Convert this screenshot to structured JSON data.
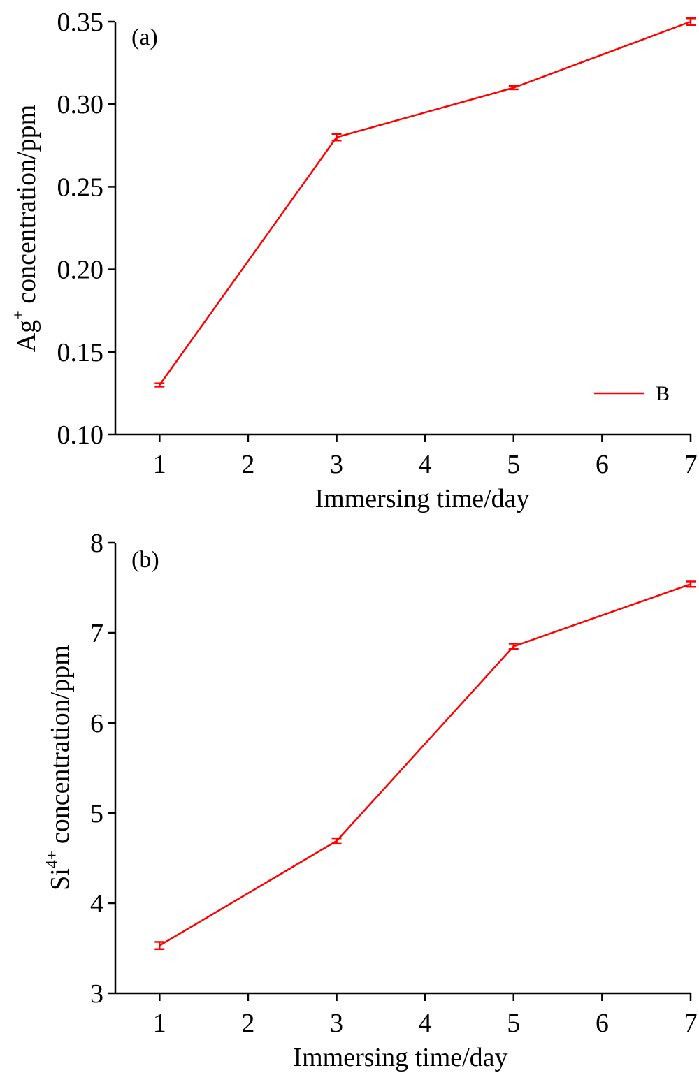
{
  "chart_data": [
    {
      "type": "line",
      "panel_label": "(a)",
      "xlabel": "Immersing time/day",
      "ylabel_main": "Ag",
      "ylabel_sup": "+",
      "ylabel_rest": " concentration/ppm",
      "xlim": [
        0.5,
        7
      ],
      "ylim": [
        0.1,
        0.35
      ],
      "x_ticks": [
        1,
        2,
        3,
        4,
        5,
        6,
        7
      ],
      "y_ticks": [
        0.1,
        0.15,
        0.2,
        0.25,
        0.3,
        0.35
      ],
      "y_tick_labels": [
        "0.10",
        "0.15",
        "0.20",
        "0.25",
        "0.30",
        "0.35"
      ],
      "grid": false,
      "legend": {
        "position": "bottom-right",
        "entries": [
          "B"
        ]
      },
      "series": [
        {
          "name": "B",
          "color": "#ff0000",
          "x": [
            1,
            3,
            5,
            7
          ],
          "y": [
            0.13,
            0.28,
            0.31,
            0.35
          ],
          "error": [
            0.001,
            0.002,
            0.001,
            0.002
          ]
        }
      ]
    },
    {
      "type": "line",
      "panel_label": "(b)",
      "xlabel": "Immersing time/day",
      "ylabel_main": "Si",
      "ylabel_sup": "4+",
      "ylabel_rest": " concentration/ppm",
      "xlim": [
        0.5,
        7
      ],
      "ylim": [
        3,
        8
      ],
      "x_ticks": [
        1,
        2,
        3,
        4,
        5,
        6,
        7
      ],
      "y_ticks": [
        3,
        4,
        5,
        6,
        7,
        8
      ],
      "y_tick_labels": [
        "3",
        "4",
        "5",
        "6",
        "7",
        "8"
      ],
      "grid": false,
      "series": [
        {
          "color": "#ff0000",
          "x": [
            1,
            3,
            5,
            7
          ],
          "y": [
            3.53,
            4.69,
            6.85,
            7.54
          ],
          "error": [
            0.04,
            0.03,
            0.03,
            0.03
          ]
        }
      ]
    }
  ]
}
